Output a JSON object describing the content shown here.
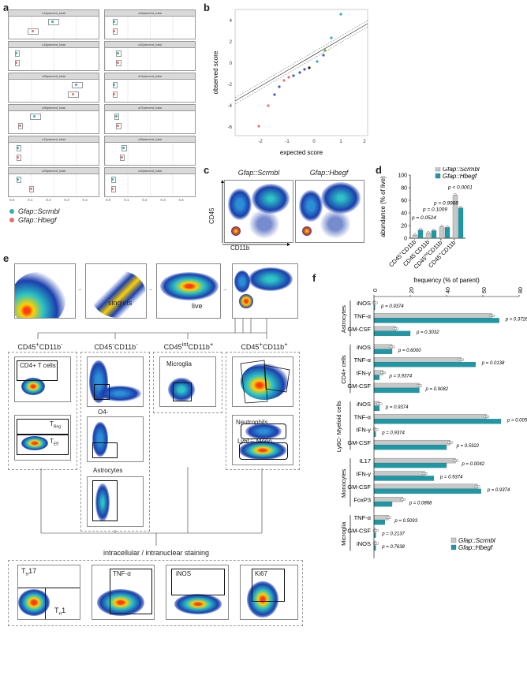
{
  "panels": {
    "a": "a",
    "b": "b",
    "c": "c",
    "d": "d",
    "e": "e",
    "f": "f"
  },
  "panel_a": {
    "facets": [
      "c14percent_total",
      "c04percent_total",
      "c15percent_total",
      "c02percent_total",
      "c05percent_total",
      "c01percent_total",
      "c08percent_total",
      "c07percent_total",
      "c11percent_total",
      "c06percent_total",
      "c09percent_total",
      "c10percent_total"
    ],
    "x_ticks": [
      "0.0",
      "0.1",
      "0.2",
      "0.3",
      "0.4"
    ],
    "legend": [
      "Gfap::Scrmbl",
      "Gfap::Hbegf"
    ],
    "colors": {
      "scrmbl": "#2bb5a8",
      "hbegf": "#e8706a"
    }
  },
  "panel_b": {
    "xlabel": "expected score",
    "ylabel": "observed score",
    "x_ticks": [
      "-2",
      "-1",
      "0",
      "1",
      "2"
    ],
    "y_ticks": [
      "4",
      "2",
      "0",
      "-2",
      "-4",
      "-6"
    ]
  },
  "panel_c": {
    "titles": [
      "Gfap::Scrmbl",
      "Gfap::Hbegf"
    ],
    "xlabel": "CD11b",
    "ylabel": "CD45"
  },
  "chart_data": [
    {
      "type": "bar",
      "title": "",
      "ylabel": "abundance (% of live)",
      "ylim": [
        0,
        100
      ],
      "y_ticks": [
        "0",
        "20",
        "40",
        "60",
        "80",
        "100"
      ],
      "categories": [
        "CD45+CD11b-",
        "CD45-CD11b-",
        "CD45int CD11b+",
        "CD45+CD11b+"
      ],
      "category_labels": [
        {
          "main": "CD45",
          "sup1": "+",
          "mid": "CD11b",
          "sup2": "-"
        },
        {
          "main": "CD45",
          "sup1": "-",
          "mid": "CD11b",
          "sup2": "-"
        },
        {
          "main": "CD45",
          "sup1": "int",
          "mid": "CD11b",
          "sup2": "+"
        },
        {
          "main": "CD45",
          "sup1": "+",
          "mid": "CD11b",
          "sup2": "+"
        }
      ],
      "series": [
        {
          "name": "Gfap::Scrmbl",
          "values": [
            5,
            8,
            18,
            68
          ]
        },
        {
          "name": "Gfap::Hbegf",
          "values": [
            13,
            12,
            17,
            48
          ]
        }
      ],
      "pvalues": [
        "p = 0.0524",
        "p = 0.1009",
        "p = 0.9988",
        "p < 0.0001"
      ],
      "legend": [
        "Gfap::Scrmbl",
        "Gfap::Hbegf"
      ]
    },
    {
      "type": "bar",
      "orientation": "horizontal",
      "title": "frequency (% of parent)",
      "xlim": [
        0,
        80
      ],
      "x_ticks": [
        "0",
        "20",
        "40",
        "60",
        "80"
      ],
      "groups": [
        {
          "name": "Astrocytes",
          "rows": [
            {
              "label": "iNOS",
              "scrmbl": 0.5,
              "hbegf": 0.5,
              "p": "p = 0.9374"
            },
            {
              "label": "TNF-α",
              "scrmbl": 65,
              "hbegf": 69,
              "p": "p = 0.3726"
            },
            {
              "label": "GM-CSF",
              "scrmbl": 12,
              "hbegf": 20,
              "p": "p = 0.3032"
            }
          ]
        },
        {
          "name": "CD4+ cells",
          "rows": [
            {
              "label": "iNOS",
              "scrmbl": 10,
              "hbegf": 10,
              "p": "p = 0.6000"
            },
            {
              "label": "TNF-α",
              "scrmbl": 48,
              "hbegf": 56,
              "p": "p = 0.0138"
            },
            {
              "label": "IFN-γ",
              "scrmbl": 5,
              "hbegf": 3,
              "p": "p = 0.9374"
            },
            {
              "label": "GM-CSF",
              "scrmbl": 25,
              "hbegf": 25,
              "p": "p = 0.9082"
            }
          ]
        },
        {
          "name": "Ly6C- Myeloid cells",
          "rows": [
            {
              "label": "iNOS",
              "scrmbl": 3,
              "hbegf": 3,
              "p": "p = 0.9374"
            },
            {
              "label": "TNF-α",
              "scrmbl": 62,
              "hbegf": 70,
              "p": "p = 0.0050"
            },
            {
              "label": "IFN-γ",
              "scrmbl": 1,
              "hbegf": 1,
              "p": "p = 0.9374"
            },
            {
              "label": "GM-CSF",
              "scrmbl": 42,
              "hbegf": 40,
              "p": "p = 0.5922"
            }
          ]
        },
        {
          "name": "Monocytes",
          "rows": [
            {
              "label": "IL17",
              "scrmbl": 45,
              "hbegf": 40,
              "p": "p = 0.0042"
            },
            {
              "label": "IFN-γ",
              "scrmbl": 28,
              "hbegf": 33,
              "p": "p = 0.9374"
            },
            {
              "label": "GM-CSF",
              "scrmbl": 57,
              "hbegf": 59,
              "p": "p = 0.9374"
            },
            {
              "label": "FoxP3",
              "scrmbl": 16,
              "hbegf": 10,
              "p": "p = 0.0868"
            }
          ]
        },
        {
          "name": "Microglia",
          "rows": [
            {
              "label": "TNF-α",
              "scrmbl": 8,
              "hbegf": 6,
              "p": "p = 0.5093"
            },
            {
              "label": "GM-CSF",
              "scrmbl": 1,
              "hbegf": 1,
              "p": "p = 0.2137"
            },
            {
              "label": "iNOS",
              "scrmbl": 1,
              "hbegf": 1,
              "p": "p = 0.7638"
            }
          ]
        }
      ],
      "legend": [
        "Gfap::Scrmbl",
        "Gfap::Hbegf"
      ]
    }
  ],
  "panel_e": {
    "singlets": "singlets",
    "live": "live",
    "columns": [
      "CD45+CD11b-",
      "CD45-CD11b-",
      "CD45int CD11b+",
      "CD45+CD11b+"
    ],
    "gates": {
      "cd4": "CD4+ T cells",
      "treg": "T",
      "treg_sub": "Reg",
      "teff": "T",
      "teff_sub": "Eff",
      "o4": "O4-",
      "astro": "Astrocytes",
      "microglia": "Microglia",
      "neutro": "Neutrophils",
      "ly6g": "Ly6G- Mono"
    },
    "staining_title": "intracellular / intranuclear staining",
    "staining": {
      "th17": "T",
      "th17_sub": "H",
      "th17_num": "17",
      "th1": "T",
      "th1_sub": "H",
      "th1_num": "1",
      "tnf": "TNF-α",
      "inos": "iNOS",
      "ki67": "Ki67"
    }
  },
  "colors": {
    "teal": "#1a9aa8",
    "grey": "#c8c8c8",
    "flow_blue": "#1a3fae"
  }
}
